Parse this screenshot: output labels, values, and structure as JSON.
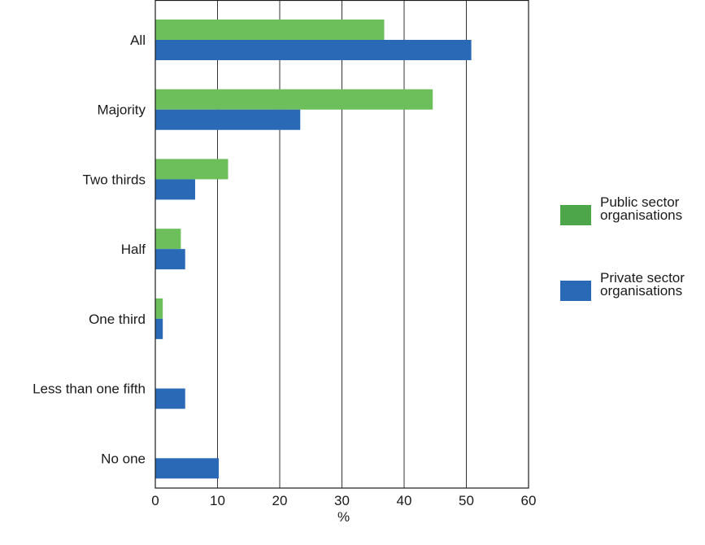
{
  "chart_data": {
    "type": "bar",
    "orientation": "horizontal",
    "categories": [
      "All",
      "Majority",
      "Two thirds",
      "Half",
      "One third",
      "Less than one fifth",
      "No one"
    ],
    "series": [
      {
        "name_lines": [
          "Public sector",
          "organisations"
        ],
        "color": "#6cbf5a",
        "legend_color": "#4da64a",
        "values": [
          36.8,
          44.6,
          11.7,
          4.1,
          1.2,
          0,
          0
        ]
      },
      {
        "name_lines": [
          "Private sector",
          "organisations"
        ],
        "color": "#2a69b5",
        "legend_color": "#2a69b5",
        "values": [
          50.8,
          23.3,
          6.4,
          4.8,
          1.2,
          4.8,
          10.2
        ]
      }
    ],
    "xlim": [
      0,
      60
    ],
    "xticks": [
      "0",
      "10",
      "20",
      "30",
      "40",
      "50",
      "60"
    ],
    "xtick_values": [
      0,
      10,
      20,
      30,
      40,
      50,
      60
    ],
    "xlabel": "%",
    "grid": "vertical",
    "legend_position": "right"
  }
}
